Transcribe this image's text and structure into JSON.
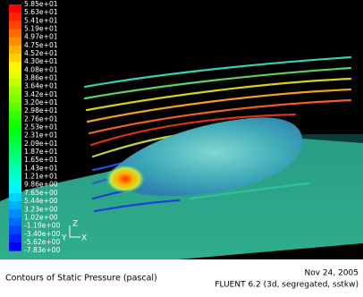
{
  "colorbar": {
    "labels": [
      "5.85e+01",
      "5.63e+01",
      "5.41e+01",
      "5.19e+01",
      "4.97e+01",
      "4.75e+01",
      "4.52e+01",
      "4.30e+01",
      "4.08e+01",
      "3.86e+01",
      "3.64e+01",
      "3.42e+01",
      "3.20e+01",
      "2.98e+01",
      "2.76e+01",
      "2.53e+01",
      "2.31e+01",
      "2.09e+01",
      "1.87e+01",
      "1.65e+01",
      "1.43e+01",
      "1.21e+01",
      "9.86e+00",
      "7.65e+00",
      "5.44e+00",
      "3.23e+00",
      "1.02e+00",
      "-1.19e+00",
      "-3.40e+00",
      "-5.62e+00",
      "-7.83e+00"
    ]
  },
  "axes": {
    "z": "Z",
    "y": "Y",
    "x": "X"
  },
  "footer": {
    "title": "Contours of Static Pressure (pascal)",
    "date": "Nov 24, 2005",
    "software": "FLUENT 6.2 (3d, segregated, sstkw)"
  }
}
